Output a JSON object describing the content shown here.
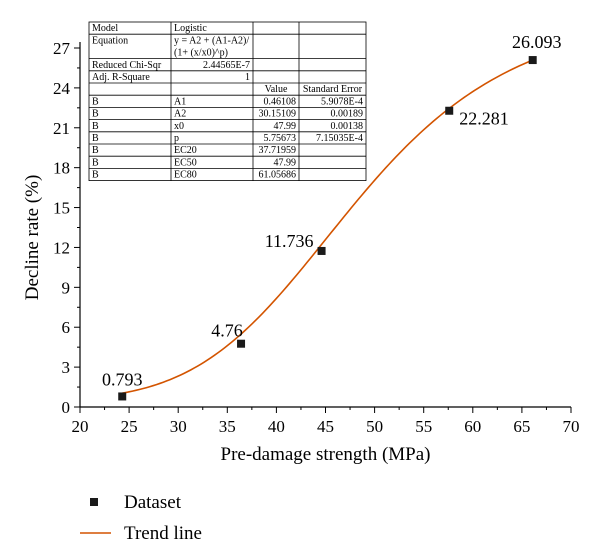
{
  "chart_data": {
    "type": "scatter",
    "xlabel": "Pre-damage strength (MPa)",
    "ylabel": "Decline rate (%)",
    "xlim": [
      20,
      70
    ],
    "ylim": [
      0,
      27
    ],
    "xticks": [
      20,
      25,
      30,
      35,
      40,
      45,
      50,
      55,
      60,
      65,
      70
    ],
    "yticks": [
      0,
      3,
      6,
      9,
      12,
      15,
      18,
      21,
      24,
      27
    ],
    "grid": false,
    "legend_placement": "bottom-left",
    "series": [
      {
        "name": "Dataset",
        "type": "scatter",
        "color": "#1a1a1a",
        "x": [
          24.3,
          36.4,
          44.6,
          57.6,
          66.1
        ],
        "y": [
          0.793,
          4.76,
          11.736,
          22.281,
          26.093
        ],
        "labels": [
          "0.793",
          "4.76",
          "11.736",
          "22.281",
          "26.093"
        ]
      },
      {
        "name": "Trend line",
        "type": "line",
        "color": "#d35400",
        "model": "logistic",
        "params": {
          "A1": 0.46108,
          "A2": 30.15109,
          "x0": 47.99,
          "p": 5.75673
        },
        "x_range": [
          24.3,
          66.1
        ]
      }
    ],
    "fit_table": {
      "header_rows": [
        [
          "Model",
          "Logistic",
          "",
          ""
        ],
        [
          "Equation",
          "y = A2 + (A1-A2)/",
          "",
          ""
        ],
        [
          "",
          "(1+ (x/x0)^p)",
          "",
          ""
        ],
        [
          "Reduced Chi-Sqr",
          "2.44565E-7",
          "",
          ""
        ],
        [
          "Adj. R-Square",
          "1",
          "",
          ""
        ]
      ],
      "columns": [
        "",
        "",
        "Value",
        "Standard Error"
      ],
      "rows": [
        [
          "B",
          "A1",
          "0.46108",
          "5.9078E-4"
        ],
        [
          "B",
          "A2",
          "30.15109",
          "0.00189"
        ],
        [
          "B",
          "x0",
          "47.99",
          "0.00138"
        ],
        [
          "B",
          "p",
          "5.75673",
          "7.15035E-4"
        ],
        [
          "B",
          "EC20",
          "37.71959",
          ""
        ],
        [
          "B",
          "EC50",
          "47.99",
          ""
        ],
        [
          "B",
          "EC80",
          "61.05686",
          ""
        ]
      ]
    }
  }
}
